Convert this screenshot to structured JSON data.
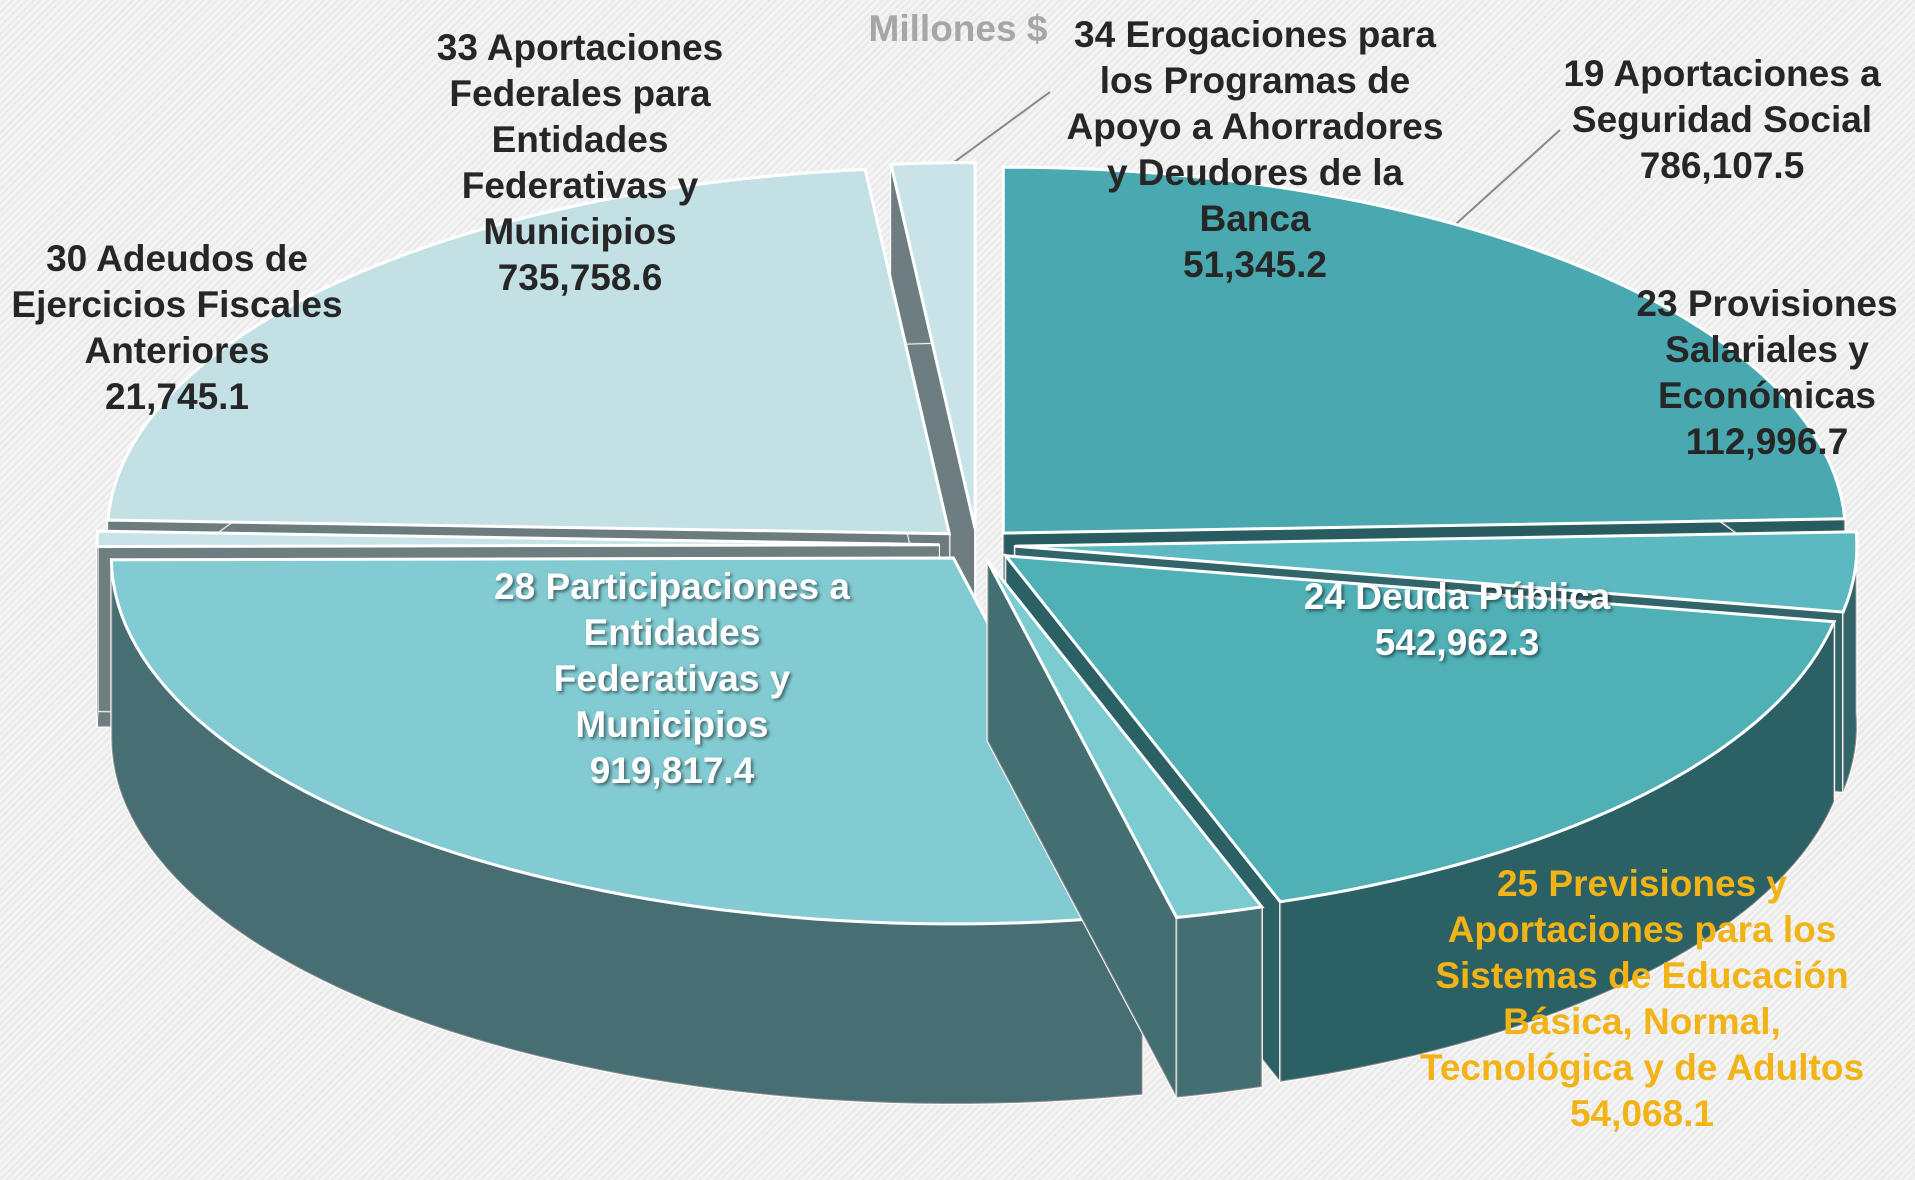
{
  "chart_data": {
    "type": "pie",
    "title": "Millones $",
    "categories": [
      "19 Aportaciones a Seguridad Social",
      "23 Provisiones Salariales y Económicas",
      "24 Deuda Pública",
      "25 Previsiones y Aportaciones para los Sistemas de Educación Básica, Normal, Tecnológica y de Adultos",
      "28 Participaciones a Entidades Federativas y Municipios",
      "30 Adeudos de Ejercicios Fiscales Anteriores",
      "33 Aportaciones Federales para Entidades Federativas y Municipios",
      "34 Erogaciones para los Programas de Apoyo a Ahorradores y Deudores de la Banca"
    ],
    "values": [
      786107.5,
      112996.7,
      542962.3,
      54068.1,
      919817.4,
      21745.1,
      735758.6,
      51345.2
    ],
    "value_labels": [
      "786,107.5",
      "112,996.7",
      "542,962.3",
      "54,068.1",
      "919,817.4",
      "21,745.1",
      "735,758.6",
      "51,345.2"
    ],
    "colors": [
      "#4aa8b0",
      "#5cb9c1",
      "#4fb0b6",
      "#7ccbd0",
      "#82cbd2",
      "#c8e4e8",
      "#c3e0e5",
      "#c8e4e8"
    ]
  }
}
